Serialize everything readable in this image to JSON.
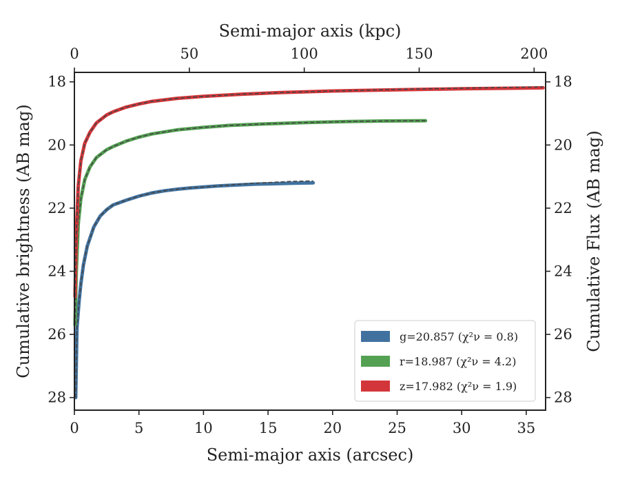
{
  "chart_data": {
    "type": "line",
    "xlabel": "Semi-major axis (arcsec)",
    "xlabel_top": "Semi-major axis (kpc)",
    "ylabel": "Cumulative brightness (AB mag)",
    "ylabel_right": "Cumulative Flux (AB mag)",
    "xlim": [
      0,
      36.5
    ],
    "xlim_top": [
      0,
      205
    ],
    "ylim": [
      28.4,
      17.7
    ],
    "y_inverted": true,
    "x_ticks": [
      0,
      5,
      10,
      15,
      20,
      25,
      30,
      35
    ],
    "x_ticks_top": [
      0,
      50,
      100,
      150,
      200
    ],
    "y_ticks": [
      18,
      20,
      22,
      24,
      26,
      28
    ],
    "grid": false,
    "legend_position": "lower-right",
    "series": [
      {
        "name": "g",
        "legend_label": "g=20.857 (χ²ν = 0.8)",
        "color": "#41729f",
        "x": [
          0.1,
          0.2,
          0.35,
          0.5,
          0.7,
          1.0,
          1.5,
          2.0,
          2.5,
          3.0,
          4.0,
          5.0,
          6.0,
          7.0,
          8.0,
          9.0,
          10.0,
          11.0,
          12.0,
          13.0,
          14.0,
          15.0,
          16.0,
          17.0,
          18.5
        ],
        "values": [
          28.0,
          25.8,
          25.0,
          24.4,
          23.8,
          23.2,
          22.6,
          22.25,
          22.05,
          21.9,
          21.75,
          21.62,
          21.52,
          21.45,
          21.4,
          21.36,
          21.33,
          21.3,
          21.28,
          21.26,
          21.24,
          21.23,
          21.22,
          21.21,
          21.2
        ],
        "model_values": [
          28.0,
          25.8,
          25.0,
          24.4,
          23.8,
          23.2,
          22.6,
          22.25,
          22.05,
          21.9,
          21.75,
          21.62,
          21.52,
          21.45,
          21.4,
          21.36,
          21.33,
          21.3,
          21.27,
          21.24,
          21.21,
          21.19,
          21.17,
          21.15,
          21.14
        ]
      },
      {
        "name": "r",
        "legend_label": "r=18.987 (χ²ν = 4.2)",
        "color": "#54a153",
        "x": [
          0.05,
          0.15,
          0.3,
          0.5,
          0.8,
          1.2,
          1.7,
          2.5,
          3.0,
          4.0,
          5.0,
          6.0,
          8.0,
          10.0,
          12.0,
          15.0,
          18.0,
          21.0,
          24.0,
          27.2
        ],
        "values": [
          25.7,
          24.0,
          22.5,
          21.7,
          21.1,
          20.7,
          20.4,
          20.15,
          20.05,
          19.88,
          19.75,
          19.65,
          19.52,
          19.44,
          19.38,
          19.33,
          19.29,
          19.26,
          19.24,
          19.23
        ],
        "model_values": [
          25.7,
          24.0,
          22.5,
          21.7,
          21.1,
          20.7,
          20.4,
          20.15,
          20.05,
          19.88,
          19.75,
          19.65,
          19.52,
          19.44,
          19.38,
          19.33,
          19.29,
          19.26,
          19.24,
          19.23
        ]
      },
      {
        "name": "z",
        "legend_label": "z=17.982 (χ²ν = 1.9)",
        "color": "#d3363a",
        "x": [
          0.05,
          0.15,
          0.3,
          0.5,
          0.8,
          1.2,
          1.7,
          2.5,
          3.0,
          4.0,
          5.0,
          6.0,
          8.0,
          10.0,
          13.0,
          16.0,
          20.0,
          25.0,
          30.0,
          36.3
        ],
        "values": [
          24.8,
          22.8,
          21.3,
          20.5,
          19.95,
          19.6,
          19.3,
          19.05,
          18.95,
          18.8,
          18.7,
          18.62,
          18.52,
          18.46,
          18.39,
          18.34,
          18.29,
          18.25,
          18.22,
          18.19
        ],
        "model_values": [
          24.8,
          22.8,
          21.3,
          20.5,
          19.95,
          19.6,
          19.3,
          19.05,
          18.95,
          18.8,
          18.7,
          18.62,
          18.52,
          18.46,
          18.39,
          18.34,
          18.29,
          18.24,
          18.2,
          18.16
        ]
      }
    ]
  }
}
